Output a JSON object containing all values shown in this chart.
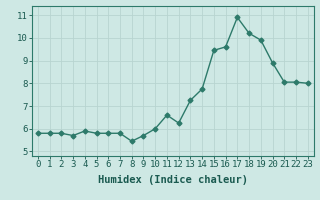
{
  "x": [
    0,
    1,
    2,
    3,
    4,
    5,
    6,
    7,
    8,
    9,
    10,
    11,
    12,
    13,
    14,
    15,
    16,
    17,
    18,
    19,
    20,
    21,
    22,
    23
  ],
  "y": [
    5.8,
    5.8,
    5.8,
    5.7,
    5.9,
    5.8,
    5.8,
    5.8,
    5.45,
    5.7,
    6.0,
    6.6,
    6.25,
    7.25,
    7.75,
    9.45,
    9.6,
    10.9,
    10.2,
    9.9,
    8.9,
    8.05,
    8.05,
    8.0
  ],
  "line_color": "#2d7a6a",
  "marker": "D",
  "marker_size": 2.5,
  "xlabel": "Humidex (Indice chaleur)",
  "xlim": [
    -0.5,
    23.5
  ],
  "ylim": [
    4.8,
    11.4
  ],
  "yticks": [
    5,
    6,
    7,
    8,
    9,
    10,
    11
  ],
  "xticks": [
    0,
    1,
    2,
    3,
    4,
    5,
    6,
    7,
    8,
    9,
    10,
    11,
    12,
    13,
    14,
    15,
    16,
    17,
    18,
    19,
    20,
    21,
    22,
    23
  ],
  "background_color": "#cee8e4",
  "grid_color": "#b8d4d0",
  "tick_label_fontsize": 6.5,
  "xlabel_fontsize": 7.5
}
